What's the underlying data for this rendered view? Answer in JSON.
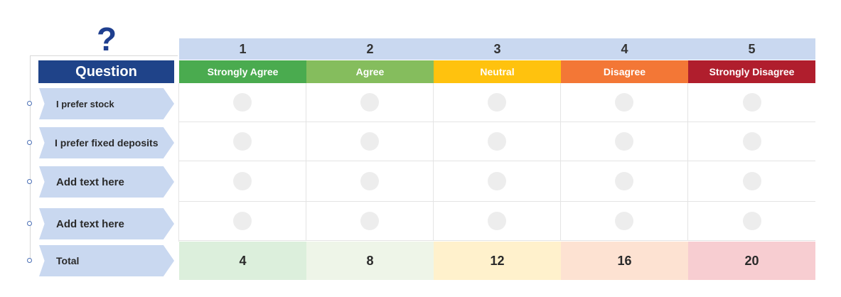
{
  "header": {
    "question_mark": "?",
    "question_label": "Question"
  },
  "scale": [
    {
      "number": "1",
      "label": "Strongly Agree",
      "color": "#4aab4f",
      "total": "4",
      "total_bg": "#dcefdc"
    },
    {
      "number": "2",
      "label": "Agree",
      "color": "#85bd5d",
      "total": "8",
      "total_bg": "#eef5e8"
    },
    {
      "number": "3",
      "label": "Neutral",
      "color": "#ffc20e",
      "total": "12",
      "total_bg": "#fff1cc"
    },
    {
      "number": "4",
      "label": "Disagree",
      "color": "#f37736",
      "total": "16",
      "total_bg": "#fde2d2"
    },
    {
      "number": "5",
      "label": "Strongly Disagree",
      "color": "#b01e2d",
      "total": "20",
      "total_bg": "#f7cdd1"
    }
  ],
  "questions": [
    {
      "label": "I prefer stock"
    },
    {
      "label": "I prefer fixed deposits"
    },
    {
      "label": "Add text here"
    },
    {
      "label": "Add text here"
    }
  ],
  "total_label": "Total",
  "colors": {
    "header_bg": "#1f4389",
    "number_row_bg": "#c9d8f0",
    "row_label_bg": "#c9d8f0"
  }
}
